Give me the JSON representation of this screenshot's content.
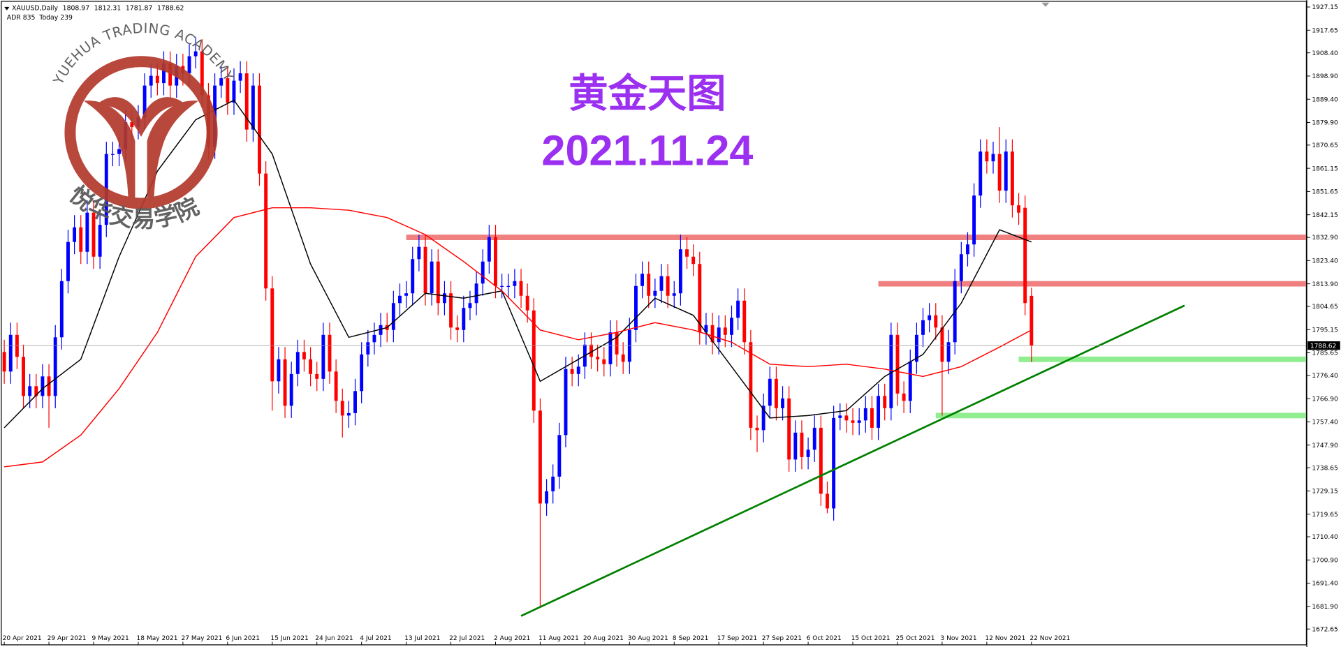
{
  "chart_data": {
    "type": "candlestick",
    "symbol": "XAUUSD,Daily",
    "info_line": "ADR 835  Today 239",
    "title": "黄金天图",
    "subtitle": "2021.11.24",
    "title_color": "#9b30f0",
    "logo": {
      "ring_text": "YUEHUA TRADING ACADEMY",
      "name": "悦华交易学院",
      "color": "#b3392b"
    },
    "up_color": "#0000ff",
    "down_color": "#ff0000",
    "grid": false,
    "ylim": [
      1666,
      1930
    ],
    "yticks": [
      {
        "value": 1927.15,
        "label": "1927.15"
      },
      {
        "value": 1917.65,
        "label": "1917.65"
      },
      {
        "value": 1908.4,
        "label": "1908.40"
      },
      {
        "value": 1898.9,
        "label": "1898.90"
      },
      {
        "value": 1889.4,
        "label": "1889.40"
      },
      {
        "value": 1879.9,
        "label": "1879.90"
      },
      {
        "value": 1870.65,
        "label": "1870.65"
      },
      {
        "value": 1861.15,
        "label": "1861.15"
      },
      {
        "value": 1851.65,
        "label": "1851.65"
      },
      {
        "value": 1842.15,
        "label": "1842.15"
      },
      {
        "value": 1832.9,
        "label": "1832.90"
      },
      {
        "value": 1823.4,
        "label": "1823.40"
      },
      {
        "value": 1813.9,
        "label": "1813.90"
      },
      {
        "value": 1804.65,
        "label": "1804.65"
      },
      {
        "value": 1795.15,
        "label": "1795.15"
      },
      {
        "value": 1785.65,
        "label": "1785.65"
      },
      {
        "value": 1776.4,
        "label": "1776.40"
      },
      {
        "value": 1766.9,
        "label": "1766.90"
      },
      {
        "value": 1757.4,
        "label": "1757.40"
      },
      {
        "value": 1747.9,
        "label": "1747.90"
      },
      {
        "value": 1738.65,
        "label": "1738.65"
      },
      {
        "value": 1729.15,
        "label": "1729.15"
      },
      {
        "value": 1719.65,
        "label": "1719.65"
      },
      {
        "value": 1710.4,
        "label": "1710.40"
      },
      {
        "value": 1700.9,
        "label": "1700.90"
      },
      {
        "value": 1691.4,
        "label": "1691.40"
      },
      {
        "value": 1681.9,
        "label": "1681.90"
      },
      {
        "value": 1672.65,
        "label": "1672.65"
      }
    ],
    "categories": [
      "20 Apr 2021",
      null,
      null,
      null,
      null,
      null,
      null,
      "29 Apr 2021",
      null,
      null,
      null,
      null,
      null,
      null,
      "9 May 2021",
      null,
      null,
      null,
      null,
      null,
      null,
      "18 May 2021",
      null,
      null,
      null,
      null,
      null,
      null,
      "27 May 2021",
      null,
      null,
      null,
      null,
      null,
      null,
      "6 Jun 2021",
      null,
      null,
      null,
      null,
      null,
      null,
      "15 Jun 2021",
      null,
      null,
      null,
      null,
      null,
      null,
      "24 Jun 2021",
      null,
      null,
      null,
      null,
      null,
      null,
      "4 Jul 2021",
      null,
      null,
      null,
      null,
      null,
      null,
      "13 Jul 2021",
      null,
      null,
      null,
      null,
      null,
      null,
      "22 Jul 2021",
      null,
      null,
      null,
      null,
      null,
      null,
      "2 Aug 2021",
      null,
      null,
      null,
      null,
      null,
      null,
      "11 Aug 2021",
      null,
      null,
      null,
      null,
      null,
      null,
      "20 Aug 2021",
      null,
      null,
      null,
      null,
      null,
      null,
      "30 Aug 2021",
      null,
      null,
      null,
      null,
      null,
      null,
      "8 Sep 2021",
      null,
      null,
      null,
      null,
      null,
      null,
      "17 Sep 2021",
      null,
      null,
      null,
      null,
      null,
      null,
      "27 Sep 2021",
      null,
      null,
      null,
      null,
      null,
      null,
      "6 Oct 2021",
      null,
      null,
      null,
      null,
      null,
      null,
      "15 Oct 2021",
      null,
      null,
      null,
      null,
      null,
      null,
      "25 Oct 2021",
      null,
      null,
      null,
      null,
      null,
      null,
      "3 Nov 2021",
      null,
      null,
      null,
      null,
      null,
      null,
      "12 Nov 2021",
      null,
      null,
      null,
      null,
      null,
      null,
      "22 Nov 2021"
    ],
    "open": [
      1786,
      1778,
      1793,
      1784,
      1768,
      1772,
      1768,
      1776,
      1768,
      1792,
      1815,
      1831,
      1837,
      1827,
      1843,
      1825,
      1838,
      1867,
      1867,
      1869,
      1880,
      1878,
      1882,
      1895,
      1899,
      1896,
      1904,
      1895,
      1903,
      1900,
      1907,
      1909,
      1891,
      1870,
      1895,
      1898,
      1888,
      1897,
      1900,
      1877,
      1895,
      1859,
      1812,
      1774,
      1783,
      1764,
      1777,
      1786,
      1783,
      1777,
      1775,
      1793,
      1778,
      1766,
      1760,
      1761,
      1770,
      1785,
      1790,
      1793,
      1797,
      1795,
      1806,
      1809,
      1810,
      1824,
      1829,
      1810,
      1823,
      1806,
      1810,
      1796,
      1795,
      1804,
      1806,
      1814,
      1823,
      1833,
      1813,
      1813,
      1813,
      1815,
      1809,
      1803,
      1762,
      1724,
      1729,
      1735,
      1752,
      1779,
      1777,
      1780,
      1789,
      1784,
      1783,
      1781,
      1794,
      1785,
      1782,
      1795,
      1813,
      1818,
      1809,
      1811,
      1817,
      1809,
      1810,
      1828,
      1825,
      1822,
      1794,
      1797,
      1790,
      1796,
      1793,
      1800,
      1807,
      1790,
      1755,
      1754,
      1764,
      1775,
      1763,
      1767,
      1742,
      1753,
      1743,
      1746,
      1755,
      1728,
      1722,
      1759,
      1760,
      1758,
      1757,
      1758,
      1763,
      1755,
      1768,
      1763,
      1793,
      1769,
      1766,
      1782,
      1793,
      1799,
      1801,
      1796,
      1782,
      1790,
      1815,
      1826,
      1830,
      1850,
      1868,
      1864,
      1867,
      1852,
      1868,
      1846,
      1845,
      1808.97
    ],
    "high": [
      1791,
      1798,
      1798,
      1789,
      1777,
      1777,
      1781,
      1781,
      1797,
      1820,
      1836,
      1842,
      1842,
      1848,
      1848,
      1843,
      1872,
      1872,
      1874,
      1885,
      1885,
      1887,
      1900,
      1904,
      1904,
      1909,
      1909,
      1908,
      1908,
      1912,
      1915,
      1914,
      1896,
      1900,
      1903,
      1903,
      1902,
      1905,
      1905,
      1900,
      1900,
      1864,
      1817,
      1788,
      1788,
      1782,
      1791,
      1791,
      1788,
      1782,
      1798,
      1798,
      1783,
      1771,
      1766,
      1775,
      1790,
      1795,
      1798,
      1802,
      1802,
      1811,
      1814,
      1815,
      1829,
      1834,
      1834,
      1828,
      1828,
      1815,
      1815,
      1801,
      1809,
      1811,
      1819,
      1828,
      1838,
      1838,
      1818,
      1818,
      1820,
      1820,
      1814,
      1808,
      1767,
      1734,
      1740,
      1757,
      1784,
      1784,
      1785,
      1794,
      1794,
      1789,
      1788,
      1799,
      1799,
      1790,
      1800,
      1818,
      1823,
      1823,
      1816,
      1822,
      1822,
      1815,
      1834,
      1833,
      1830,
      1827,
      1802,
      1802,
      1801,
      1801,
      1805,
      1812,
      1812,
      1795,
      1760,
      1769,
      1780,
      1780,
      1772,
      1772,
      1758,
      1758,
      1751,
      1760,
      1760,
      1733,
      1764,
      1765,
      1765,
      1763,
      1763,
      1768,
      1768,
      1773,
      1773,
      1798,
      1798,
      1774,
      1787,
      1798,
      1804,
      1806,
      1806,
      1801,
      1795,
      1820,
      1831,
      1835,
      1855,
      1873,
      1873,
      1872,
      1878,
      1873,
      1873,
      1851,
      1850,
      1812.31
    ],
    "low": [
      1773,
      1773,
      1779,
      1763,
      1763,
      1763,
      1763,
      1755,
      1763,
      1787,
      1810,
      1826,
      1822,
      1822,
      1820,
      1820,
      1833,
      1862,
      1862,
      1864,
      1873,
      1873,
      1877,
      1890,
      1891,
      1891,
      1890,
      1890,
      1895,
      1895,
      1902,
      1886,
      1865,
      1865,
      1890,
      1883,
      1883,
      1892,
      1872,
      1872,
      1854,
      1807,
      1762,
      1769,
      1759,
      1759,
      1772,
      1778,
      1772,
      1770,
      1770,
      1773,
      1761,
      1751,
      1755,
      1756,
      1765,
      1780,
      1785,
      1788,
      1790,
      1790,
      1801,
      1804,
      1805,
      1819,
      1805,
      1805,
      1801,
      1801,
      1791,
      1790,
      1790,
      1799,
      1801,
      1809,
      1818,
      1808,
      1808,
      1808,
      1808,
      1804,
      1798,
      1757,
      1682,
      1719,
      1724,
      1730,
      1747,
      1772,
      1772,
      1775,
      1779,
      1778,
      1776,
      1776,
      1780,
      1777,
      1777,
      1790,
      1808,
      1804,
      1804,
      1806,
      1804,
      1804,
      1805,
      1820,
      1817,
      1789,
      1789,
      1785,
      1785,
      1788,
      1788,
      1795,
      1785,
      1750,
      1745,
      1749,
      1759,
      1758,
      1758,
      1737,
      1737,
      1738,
      1738,
      1741,
      1723,
      1720,
      1717,
      1754,
      1753,
      1752,
      1752,
      1753,
      1750,
      1750,
      1758,
      1758,
      1764,
      1761,
      1761,
      1777,
      1788,
      1794,
      1791,
      1760,
      1777,
      1785,
      1810,
      1821,
      1825,
      1845,
      1859,
      1859,
      1847,
      1847,
      1841,
      1838,
      1801,
      1781.87
    ],
    "close": [
      1778,
      1793,
      1784,
      1768,
      1772,
      1768,
      1776,
      1768,
      1792,
      1815,
      1831,
      1837,
      1827,
      1843,
      1825,
      1838,
      1867,
      1867,
      1869,
      1880,
      1878,
      1882,
      1895,
      1899,
      1896,
      1904,
      1895,
      1903,
      1900,
      1907,
      1909,
      1891,
      1870,
      1895,
      1898,
      1888,
      1897,
      1900,
      1877,
      1895,
      1859,
      1812,
      1774,
      1783,
      1764,
      1777,
      1786,
      1783,
      1777,
      1775,
      1793,
      1778,
      1766,
      1760,
      1761,
      1770,
      1785,
      1790,
      1793,
      1797,
      1795,
      1806,
      1809,
      1810,
      1824,
      1829,
      1810,
      1823,
      1806,
      1810,
      1796,
      1795,
      1804,
      1806,
      1814,
      1823,
      1833,
      1813,
      1813,
      1813,
      1815,
      1809,
      1803,
      1762,
      1724,
      1729,
      1735,
      1752,
      1779,
      1777,
      1780,
      1789,
      1784,
      1783,
      1781,
      1794,
      1785,
      1782,
      1795,
      1813,
      1818,
      1809,
      1811,
      1817,
      1809,
      1810,
      1828,
      1825,
      1822,
      1794,
      1797,
      1790,
      1796,
      1793,
      1800,
      1807,
      1790,
      1755,
      1754,
      1764,
      1775,
      1763,
      1767,
      1742,
      1753,
      1743,
      1746,
      1755,
      1728,
      1722,
      1759,
      1760,
      1758,
      1757,
      1758,
      1763,
      1755,
      1768,
      1763,
      1793,
      1769,
      1766,
      1782,
      1793,
      1799,
      1801,
      1796,
      1782,
      1790,
      1815,
      1826,
      1830,
      1850,
      1868,
      1864,
      1867,
      1852,
      1868,
      1846,
      1843,
      1806,
      1788.62
    ],
    "lines": [
      {
        "color": "#000000",
        "x": [
          0,
          6,
          12,
          18,
          24,
          30,
          36,
          42,
          48,
          54,
          60,
          66,
          72,
          78,
          84,
          90,
          96,
          102,
          108,
          114,
          120,
          126,
          132,
          138,
          144,
          150,
          156,
          161
        ],
        "values": [
          1755,
          1771,
          1783,
          1825,
          1860,
          1881,
          1889,
          1867,
          1822,
          1792,
          1796,
          1810,
          1808,
          1811,
          1774,
          1783,
          1792,
          1808,
          1801,
          1780,
          1759,
          1760,
          1762,
          1776,
          1785,
          1806,
          1836,
          1831
        ]
      },
      {
        "color": "#ff0000",
        "x": [
          0,
          6,
          12,
          18,
          24,
          30,
          36,
          42,
          48,
          54,
          60,
          66,
          72,
          78,
          84,
          90,
          96,
          102,
          108,
          114,
          120,
          126,
          132,
          138,
          144,
          150,
          156,
          161
        ],
        "values": [
          1739,
          1741,
          1752,
          1771,
          1794,
          1825,
          1841,
          1845,
          1845,
          1844,
          1841,
          1834,
          1823,
          1811,
          1795,
          1791,
          1794,
          1798,
          1795,
          1790,
          1781,
          1780,
          1781,
          1779,
          1776,
          1780,
          1788,
          1795
        ]
      }
    ],
    "levels": [
      {
        "value": 1832.9,
        "from": 63,
        "color": "#f08080"
      },
      {
        "value": 1813.9,
        "from": 137,
        "color": "#f08080"
      },
      {
        "value": 1783,
        "from": 159,
        "color": "#90ee90"
      },
      {
        "value": 1760,
        "from": 146,
        "color": "#90ee90"
      }
    ],
    "trendline": {
      "color": "#008000",
      "x": [
        81,
        185
      ],
      "values": [
        1678,
        1805
      ]
    }
  }
}
